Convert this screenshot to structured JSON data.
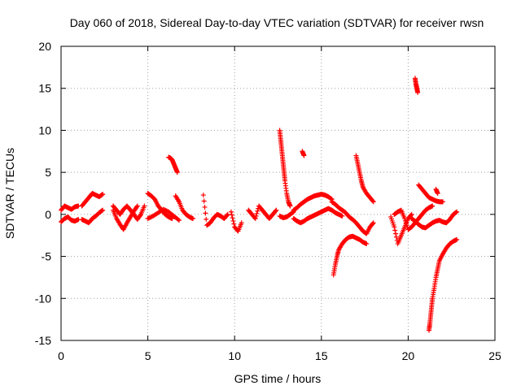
{
  "chart_data": {
    "type": "scatter",
    "title": "Day 060 of 2018, Sidereal Day-to-day VTEC variation (SDTVAR) for receiver rwsn",
    "xlabel": "GPS time / hours",
    "ylabel": "SDTVAR / TECUs",
    "xlim": [
      0,
      25
    ],
    "ylim": [
      -15,
      20
    ],
    "xticks": [
      0,
      5,
      10,
      15,
      20,
      25
    ],
    "yticks": [
      -15,
      -10,
      -5,
      0,
      5,
      10,
      15,
      20
    ],
    "grid": true,
    "marker": "+",
    "color": "#ff0000",
    "series": [
      {
        "name": "SDTVAR",
        "segments": [
          {
            "x": [
              0.0,
              0.2,
              0.4,
              0.6,
              0.8,
              1.0
            ],
            "y": [
              0.5,
              1.0,
              0.8,
              0.6,
              0.9,
              1.0
            ]
          },
          {
            "x": [
              0.0,
              0.2,
              0.4,
              0.6,
              0.8,
              1.0
            ],
            "y": [
              -0.9,
              -0.5,
              -0.3,
              -0.7,
              -0.8,
              -0.6
            ]
          },
          {
            "x": [
              1.2,
              1.4,
              1.6,
              1.8,
              2.0,
              2.2,
              2.4
            ],
            "y": [
              1.0,
              1.5,
              2.0,
              2.5,
              2.3,
              2.1,
              2.4
            ]
          },
          {
            "x": [
              1.2,
              1.4,
              1.6,
              1.8,
              2.0,
              2.2,
              2.4
            ],
            "y": [
              -0.6,
              -0.8,
              -1.0,
              -0.5,
              -0.2,
              0.2,
              0.5
            ]
          },
          {
            "x": [
              3.0,
              3.2,
              3.4,
              3.6,
              3.8,
              4.0,
              4.2,
              4.4
            ],
            "y": [
              0.5,
              -0.5,
              -1.2,
              -1.8,
              -1.0,
              -0.3,
              0.4,
              1.0
            ]
          },
          {
            "x": [
              3.0,
              3.2,
              3.4,
              3.6,
              3.8,
              4.0,
              4.2,
              4.4,
              4.6,
              4.8
            ],
            "y": [
              1.0,
              0.5,
              0.0,
              0.6,
              1.0,
              0.5,
              0.0,
              -0.6,
              0.0,
              1.0
            ]
          },
          {
            "x": [
              5.0,
              5.2,
              5.4,
              5.6,
              5.8,
              6.0,
              6.2,
              6.4
            ],
            "y": [
              2.5,
              2.2,
              1.8,
              1.0,
              0.5,
              0.0,
              -0.3,
              -0.5
            ]
          },
          {
            "x": [
              5.0,
              5.3,
              5.6,
              5.9,
              6.2,
              6.5,
              6.8
            ],
            "y": [
              -0.5,
              -0.2,
              0.2,
              0.6,
              0.3,
              -0.2,
              -0.7
            ]
          },
          {
            "x": [
              6.2,
              6.3,
              6.4,
              6.5,
              6.6,
              6.7
            ],
            "y": [
              6.8,
              6.7,
              6.5,
              6.0,
              5.5,
              5.0
            ]
          },
          {
            "x": [
              6.6,
              6.8,
              7.0,
              7.2,
              7.4,
              7.6
            ],
            "y": [
              2.2,
              1.5,
              0.5,
              0.0,
              -0.3,
              -0.5
            ]
          },
          {
            "x": [
              8.2,
              8.4,
              8.6,
              8.8,
              9.0,
              9.2,
              9.4,
              9.6
            ],
            "y": [
              2.3,
              -1.3,
              -1.0,
              -0.4,
              0.0,
              -0.2,
              -0.5,
              0.0
            ]
          },
          {
            "x": [
              9.8,
              10.0,
              10.2,
              10.4
            ],
            "y": [
              0.3,
              -1.5,
              -2.0,
              -1.0
            ]
          },
          {
            "x": [
              10.8,
              11.0,
              11.2,
              11.4,
              11.6,
              11.8,
              12.0,
              12.2,
              12.4
            ],
            "y": [
              0.5,
              0.0,
              -0.5,
              1.0,
              0.5,
              0.0,
              -0.5,
              0.0,
              0.5
            ]
          },
          {
            "x": [
              12.6,
              12.65,
              12.7,
              12.75,
              12.8,
              12.85,
              12.9,
              13.0,
              13.1,
              13.2
            ],
            "y": [
              10.0,
              9.0,
              8.0,
              7.0,
              6.0,
              5.0,
              4.0,
              2.5,
              1.5,
              1.0
            ]
          },
          {
            "x": [
              12.6,
              12.8,
              13.0,
              13.2,
              13.4
            ],
            "y": [
              -0.2,
              -0.4,
              -0.3,
              0.0,
              0.3
            ]
          },
          {
            "x": [
              13.9,
              14.0
            ],
            "y": [
              7.5,
              7.0
            ]
          },
          {
            "x": [
              13.4,
              13.6,
              13.8,
              14.0,
              14.2,
              14.4,
              14.6,
              14.8,
              15.0,
              15.2,
              15.4,
              15.6
            ],
            "y": [
              0.5,
              0.8,
              1.2,
              1.5,
              1.8,
              2.0,
              2.2,
              2.3,
              2.4,
              2.3,
              2.1,
              1.8
            ]
          },
          {
            "x": [
              13.4,
              13.6,
              13.8,
              14.0,
              14.2,
              14.4,
              14.6,
              14.8,
              15.0,
              15.2,
              15.4,
              15.6,
              15.8,
              16.0,
              16.2
            ],
            "y": [
              -0.5,
              -0.8,
              -1.0,
              -0.8,
              -0.5,
              -0.3,
              -0.1,
              0.1,
              0.3,
              0.5,
              0.7,
              0.5,
              0.2,
              0.0,
              -0.2
            ]
          },
          {
            "x": [
              15.6,
              15.8,
              16.0,
              16.2,
              16.4,
              16.6,
              16.8,
              17.0,
              17.2,
              17.4,
              17.6,
              17.8,
              18.0
            ],
            "y": [
              1.5,
              1.2,
              0.8,
              0.5,
              0.2,
              -0.3,
              -0.6,
              -1.0,
              -1.5,
              -2.0,
              -2.3,
              -1.5,
              -1.0
            ]
          },
          {
            "x": [
              15.7,
              15.8,
              15.9,
              16.0,
              16.2,
              16.4,
              16.6,
              16.8,
              17.0,
              17.2,
              17.4,
              17.6
            ],
            "y": [
              -7.2,
              -6.0,
              -5.0,
              -4.2,
              -3.5,
              -3.0,
              -2.7,
              -2.6,
              -2.8,
              -3.0,
              -3.3,
              -3.5
            ]
          },
          {
            "x": [
              17.0,
              17.1,
              17.2,
              17.3,
              17.4,
              17.6,
              17.8,
              18.0
            ],
            "y": [
              7.0,
              6.0,
              5.0,
              4.0,
              3.2,
              2.5,
              2.0,
              1.5
            ]
          },
          {
            "x": [
              19.0,
              19.2,
              19.4,
              19.6,
              19.8,
              20.0,
              20.2
            ],
            "y": [
              -0.3,
              -1.5,
              -3.5,
              -2.5,
              -1.5,
              -0.5,
              0.0
            ]
          },
          {
            "x": [
              19.2,
              19.4,
              19.6,
              19.8,
              20.0,
              20.2,
              20.4,
              20.6,
              20.8,
              21.0,
              21.2,
              21.4
            ],
            "y": [
              0.0,
              0.3,
              0.5,
              -0.5,
              -1.8,
              -1.5,
              -1.0,
              -0.5,
              0.0,
              0.5,
              0.8,
              1.0
            ]
          },
          {
            "x": [
              20.4,
              20.45,
              20.5,
              20.55
            ],
            "y": [
              16.2,
              15.5,
              15.0,
              14.5
            ]
          },
          {
            "x": [
              20.6,
              20.8,
              21.0,
              21.2,
              21.4,
              21.6,
              21.8,
              22.0
            ],
            "y": [
              3.5,
              3.0,
              2.5,
              2.0,
              1.8,
              1.6,
              1.5,
              1.5
            ]
          },
          {
            "x": [
              21.6,
              21.7
            ],
            "y": [
              3.0,
              2.5
            ]
          },
          {
            "x": [
              20.2,
              20.4,
              20.6,
              20.8,
              21.0,
              21.2,
              21.4,
              21.6,
              21.8,
              22.0,
              22.2,
              22.4,
              22.6,
              22.8
            ],
            "y": [
              -0.5,
              -0.8,
              -1.2,
              -1.5,
              -1.6,
              -1.3,
              -1.0,
              -0.8,
              -0.7,
              -0.9,
              -1.0,
              -0.6,
              0.0,
              0.3
            ]
          },
          {
            "x": [
              21.2,
              21.25,
              21.3,
              21.35,
              21.4,
              21.5,
              21.6,
              21.7,
              21.8,
              22.0,
              22.2,
              22.4,
              22.6,
              22.8
            ],
            "y": [
              -13.8,
              -13.0,
              -12.0,
              -11.0,
              -10.0,
              -8.8,
              -7.5,
              -6.5,
              -5.5,
              -4.7,
              -4.0,
              -3.5,
              -3.2,
              -3.0
            ]
          }
        ]
      }
    ]
  }
}
